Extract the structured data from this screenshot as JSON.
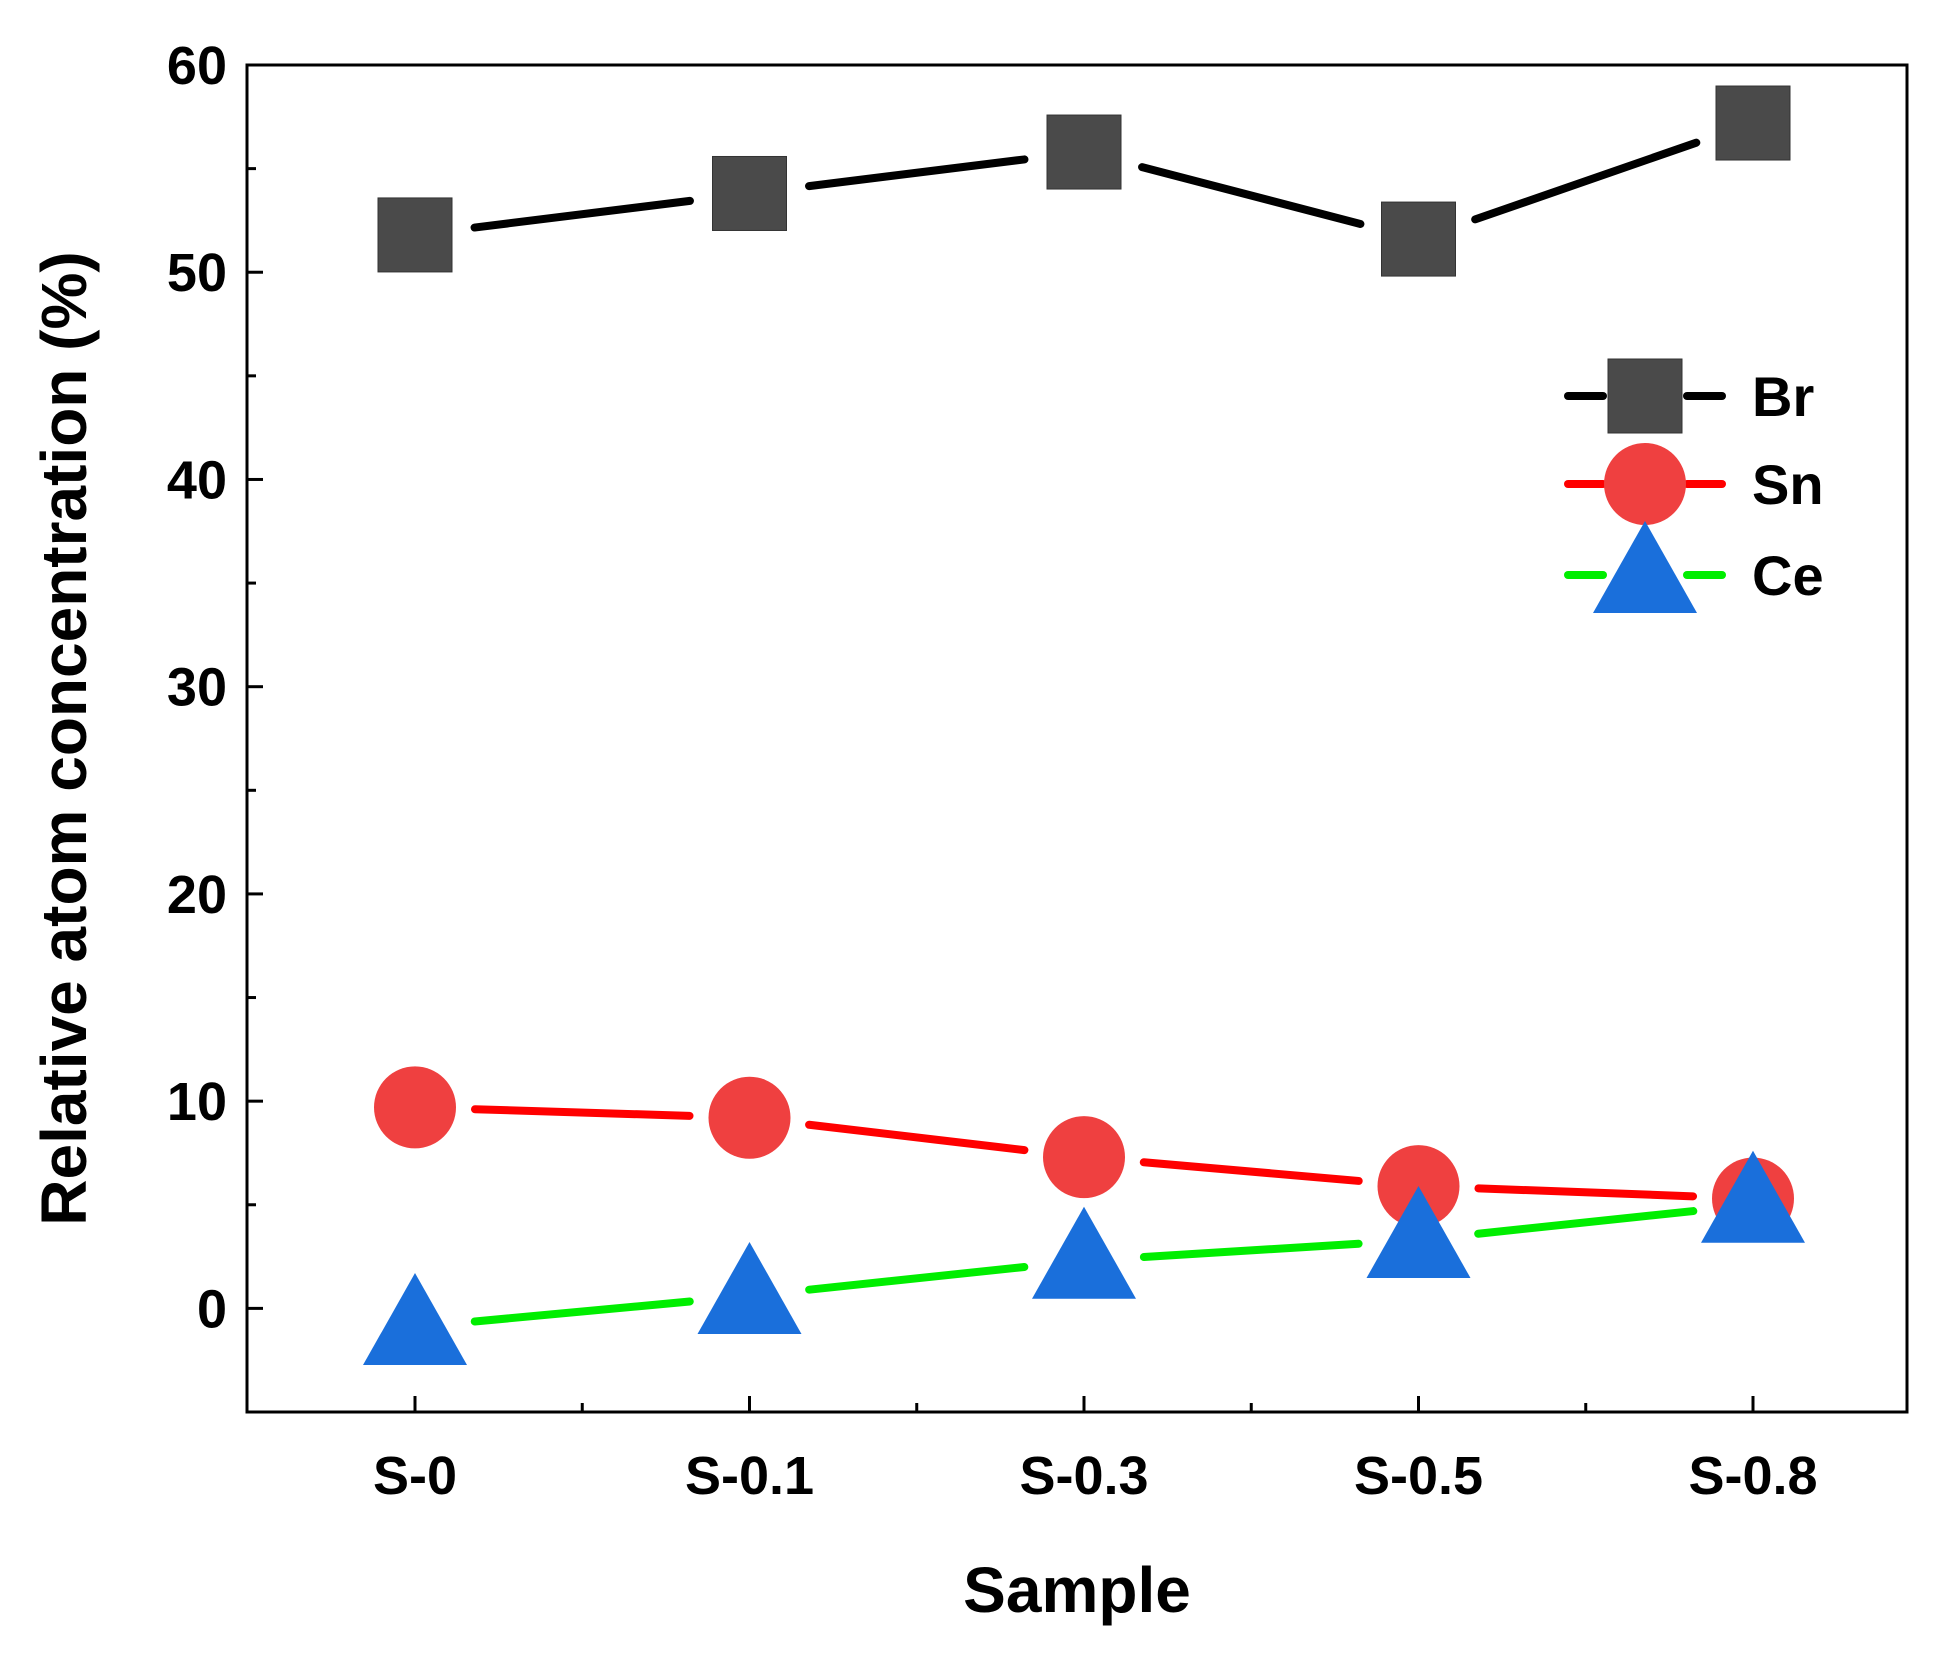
{
  "chart_data": {
    "type": "line",
    "xlabel": "Sample",
    "ylabel": "Relative atom concentration (%)",
    "categories": [
      "S-0",
      "S-0.1",
      "S-0.3",
      "S-0.5",
      "S-0.8"
    ],
    "ylim": [
      -5,
      60
    ],
    "yticks": [
      0,
      10,
      20,
      30,
      40,
      50,
      60
    ],
    "y_minor_step": 5,
    "grid": false,
    "legend_position": "top-right",
    "series": [
      {
        "name": "Br",
        "values": [
          51.8,
          53.8,
          55.8,
          51.6,
          57.2
        ],
        "line_color": "#000000",
        "marker": "square",
        "marker_color": "#4a4a4a"
      },
      {
        "name": "Sn",
        "values": [
          9.7,
          9.2,
          7.3,
          5.9,
          5.3
        ],
        "line_color": "#ff0000",
        "marker": "circle",
        "marker_color": "#ef4040"
      },
      {
        "name": "Ce",
        "values": [
          -0.9,
          0.6,
          2.3,
          3.3,
          5.0
        ],
        "line_color": "#00ee00",
        "marker": "triangle",
        "marker_color": "#1a6fdb"
      }
    ]
  }
}
